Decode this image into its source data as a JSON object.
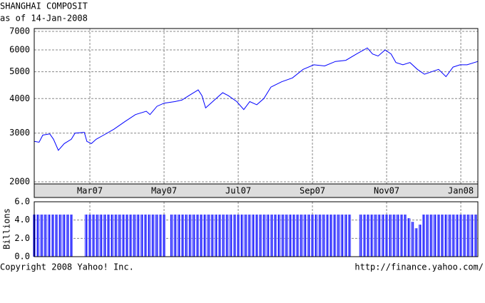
{
  "chart_data": [
    {
      "type": "line",
      "title": "SHANGHAI COMPOSIT",
      "subtitle": "as of 14-Jan-2008",
      "x": [
        0.5,
        0.63,
        0.73,
        0.92,
        1.02,
        1.15,
        1.31,
        1.5,
        1.6,
        1.85,
        1.92,
        2.04,
        2.17,
        2.37,
        2.65,
        2.94,
        3.23,
        3.52,
        3.62,
        3.81,
        4.0,
        4.29,
        4.48,
        4.67,
        4.92,
        5.02,
        5.12,
        5.31,
        5.58,
        5.73,
        5.96,
        6.15,
        6.31,
        6.5,
        6.69,
        6.88,
        7.17,
        7.46,
        7.75,
        8.04,
        8.33,
        8.62,
        8.9,
        9.19,
        9.48,
        9.62,
        9.77,
        9.96,
        10.12,
        10.25,
        10.44,
        10.63,
        10.83,
        11.02,
        11.21,
        11.4,
        11.6,
        11.79,
        11.98,
        12.17,
        12.46
      ],
      "values": [
        2800,
        2780,
        2950,
        2980,
        2850,
        2600,
        2750,
        2850,
        3000,
        3020,
        2800,
        2750,
        2850,
        2950,
        3100,
        3300,
        3500,
        3600,
        3500,
        3750,
        3850,
        3900,
        3950,
        4100,
        4300,
        4100,
        3700,
        3900,
        4200,
        4100,
        3900,
        3650,
        3900,
        3800,
        4000,
        4400,
        4600,
        4750,
        5100,
        5300,
        5250,
        5450,
        5500,
        5800,
        6100,
        5800,
        5700,
        6000,
        5800,
        5400,
        5300,
        5400,
        5100,
        4900,
        5000,
        5100,
        4800,
        5200,
        5300,
        5300,
        5450
      ],
      "color": "#0000ff",
      "log_scale": true,
      "grid": true,
      "xlim": [
        0.5,
        12.46
      ],
      "xticks": [
        {
          "value": 2,
          "label": "Mar07"
        },
        {
          "value": 4,
          "label": "May07"
        },
        {
          "value": 6,
          "label": "Jul07"
        },
        {
          "value": 8,
          "label": "Sep07"
        },
        {
          "value": 10,
          "label": "Nov07"
        },
        {
          "value": 12,
          "label": "Jan08"
        }
      ],
      "ylim": [
        2000,
        7000
      ],
      "yticks": [
        2000,
        3000,
        4000,
        5000,
        6000,
        7000
      ]
    },
    {
      "type": "bar",
      "y_label": "Billions",
      "color": "#0000ff",
      "grid": true,
      "x": [
        0.5,
        0.6,
        0.7,
        0.8,
        0.9,
        1.0,
        1.1,
        1.2,
        1.3,
        1.4,
        1.5,
        1.9,
        2.0,
        2.1,
        2.2,
        2.3,
        2.4,
        2.5,
        2.6,
        2.7,
        2.8,
        2.9,
        3.0,
        3.1,
        3.2,
        3.3,
        3.4,
        3.5,
        3.6,
        3.7,
        3.8,
        3.9,
        4.0,
        4.2,
        4.3,
        4.4,
        4.5,
        4.6,
        4.7,
        4.8,
        4.9,
        5.0,
        5.1,
        5.2,
        5.3,
        5.4,
        5.5,
        5.6,
        5.7,
        5.8,
        5.9,
        6.0,
        6.1,
        6.2,
        6.3,
        6.4,
        6.5,
        6.6,
        6.7,
        6.8,
        6.9,
        7.0,
        7.1,
        7.2,
        7.3,
        7.4,
        7.5,
        7.6,
        7.7,
        7.8,
        7.9,
        8.0,
        8.1,
        8.2,
        8.3,
        8.4,
        8.5,
        8.6,
        8.7,
        8.8,
        8.9,
        9.0,
        9.3,
        9.4,
        9.5,
        9.6,
        9.7,
        9.8,
        9.9,
        10.0,
        10.1,
        10.2,
        10.3,
        10.4,
        10.5,
        10.6,
        10.7,
        10.8,
        10.9,
        11.0,
        11.1,
        11.2,
        11.3,
        11.4,
        11.5,
        11.6,
        11.7,
        11.8,
        11.9,
        12.0,
        12.1,
        12.2,
        12.3,
        12.4
      ],
      "values": [
        4.6,
        4.6,
        4.6,
        4.6,
        4.6,
        4.6,
        4.6,
        4.6,
        4.6,
        4.6,
        4.6,
        4.6,
        4.6,
        4.6,
        4.6,
        4.6,
        4.6,
        4.6,
        4.6,
        4.6,
        4.6,
        4.6,
        4.6,
        4.6,
        4.6,
        4.6,
        4.6,
        4.6,
        4.6,
        4.6,
        4.6,
        4.6,
        4.6,
        4.6,
        4.6,
        4.6,
        4.6,
        4.6,
        4.6,
        4.6,
        4.6,
        4.6,
        4.6,
        4.6,
        4.6,
        4.6,
        4.6,
        4.6,
        4.6,
        4.6,
        4.6,
        4.6,
        4.6,
        4.6,
        4.6,
        4.6,
        4.6,
        4.6,
        4.6,
        4.6,
        4.6,
        4.6,
        4.6,
        4.6,
        4.6,
        4.6,
        4.6,
        4.6,
        4.6,
        4.6,
        4.6,
        4.6,
        4.6,
        4.6,
        4.6,
        4.6,
        4.6,
        4.6,
        4.6,
        4.6,
        4.6,
        4.6,
        4.6,
        4.6,
        4.6,
        4.6,
        4.6,
        4.6,
        4.6,
        4.6,
        4.6,
        4.6,
        4.6,
        4.6,
        4.6,
        4.2,
        3.8,
        3.1,
        3.5,
        4.6,
        4.6,
        4.6,
        4.6,
        4.6,
        4.6,
        4.6,
        4.6,
        4.6,
        4.6,
        4.6,
        4.6,
        4.6,
        4.6,
        4.6
      ],
      "ylim": [
        0,
        6
      ],
      "yticks": [
        {
          "value": 0,
          "label": "0.0"
        },
        {
          "value": 2,
          "label": "2.0"
        },
        {
          "value": 4,
          "label": "4.0"
        },
        {
          "value": 6,
          "label": "6.0"
        }
      ]
    }
  ],
  "footer": {
    "copyright": "Copyright 2008 Yahoo! Inc.",
    "url": "http://finance.yahoo.com/"
  }
}
